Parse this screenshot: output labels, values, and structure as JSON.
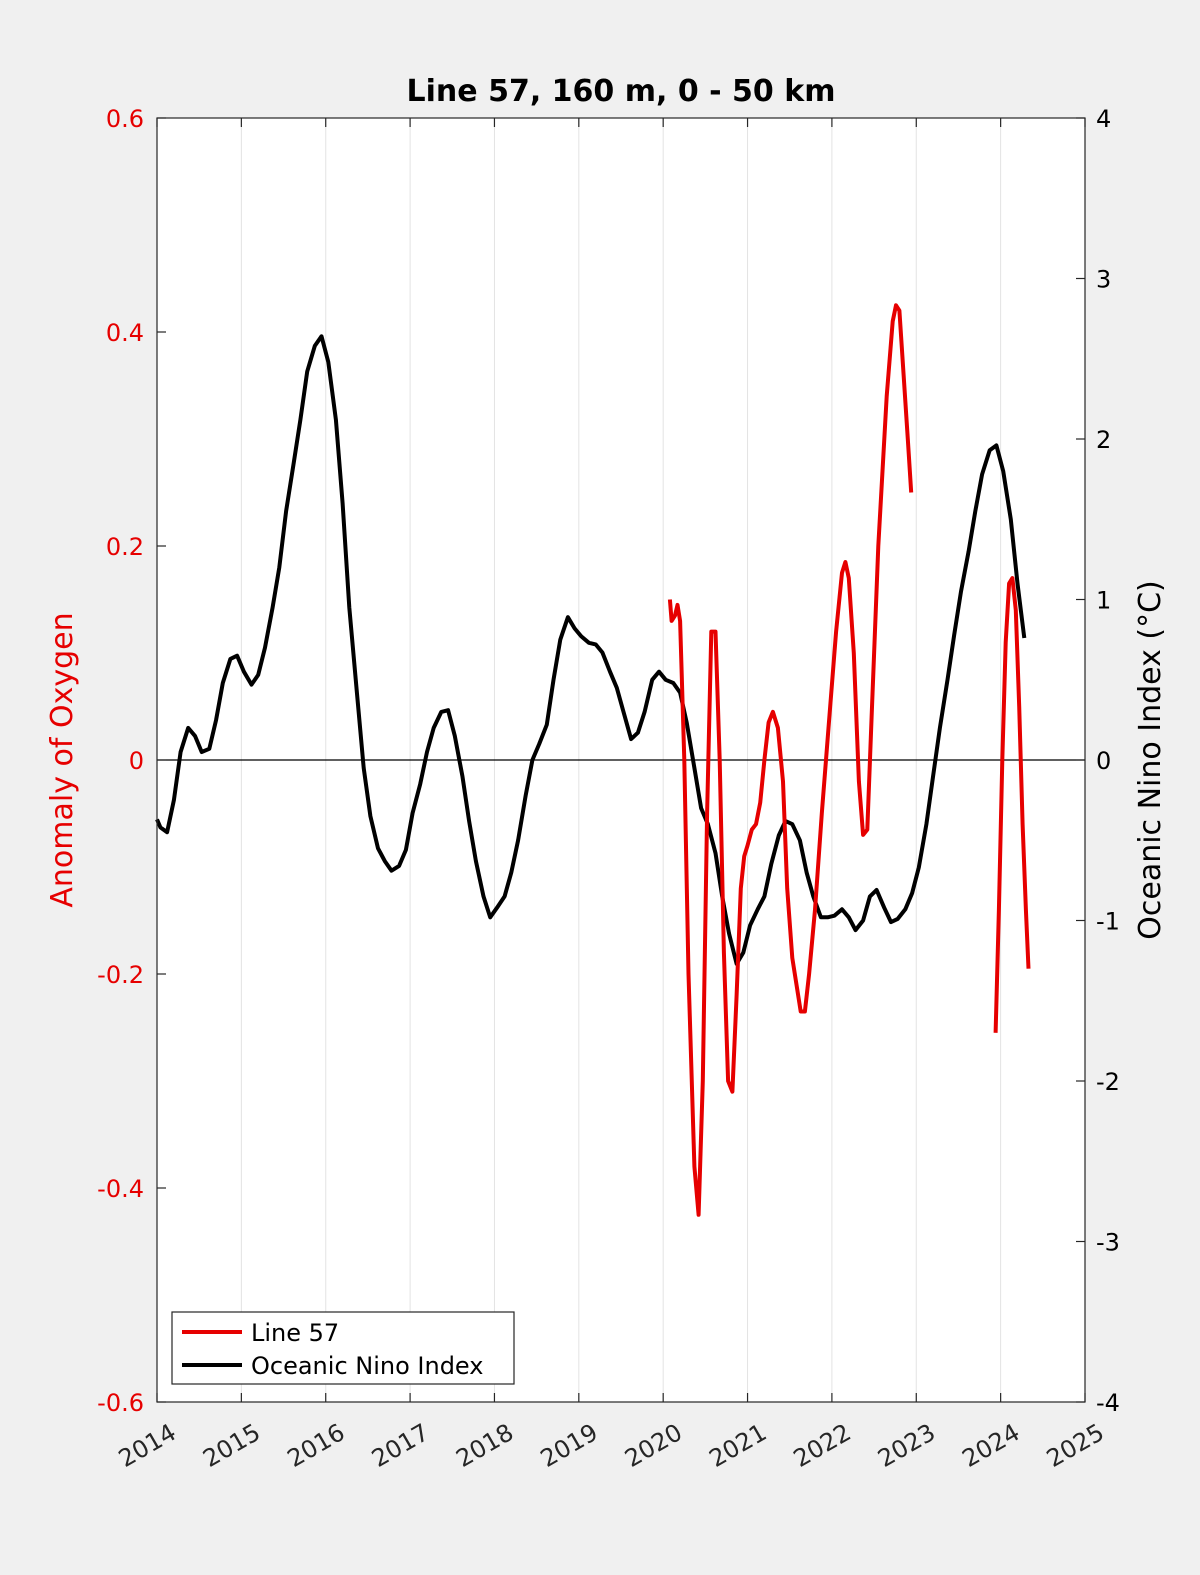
{
  "chart_data": {
    "type": "line",
    "title": "Line 57, 160 m, 0 - 50 km",
    "ylabel_left": "Anomaly of Oxygen",
    "ylabel_right": "Oceanic Nino Index (°C)",
    "xlim": [
      2014,
      2025
    ],
    "ylim_left": [
      -0.6,
      0.6
    ],
    "ylim_right": [
      -4,
      4
    ],
    "x_ticks": [
      "2014",
      "2015",
      "2016",
      "2017",
      "2018",
      "2019",
      "2020",
      "2021",
      "2022",
      "2023",
      "2024",
      "2025"
    ],
    "y_left_ticks": [
      "-0.6",
      "-0.4",
      "-0.2",
      "0",
      "0.2",
      "0.4",
      "0.6"
    ],
    "y_right_ticks": [
      "-4",
      "-3",
      "-2",
      "-1",
      "0",
      "1",
      "2",
      "3",
      "4"
    ],
    "grid": "vertical",
    "zero_line": true,
    "legend_position": "bottom-left",
    "series": [
      {
        "name": "Line 57",
        "axis": "left",
        "color": "#e60000",
        "segments": [
          [
            [
              2020.08,
              0.15
            ],
            [
              2020.1,
              0.13
            ],
            [
              2020.14,
              0.135
            ],
            [
              2020.17,
              0.145
            ],
            [
              2020.2,
              0.13
            ],
            [
              2020.25,
              0.0
            ],
            [
              2020.3,
              -0.2
            ],
            [
              2020.37,
              -0.38
            ],
            [
              2020.42,
              -0.425
            ],
            [
              2020.47,
              -0.3
            ],
            [
              2020.52,
              -0.05
            ],
            [
              2020.57,
              0.12
            ],
            [
              2020.62,
              0.12
            ],
            [
              2020.67,
              0.0
            ],
            [
              2020.72,
              -0.18
            ],
            [
              2020.77,
              -0.3
            ],
            [
              2020.82,
              -0.31
            ],
            [
              2020.87,
              -0.22
            ],
            [
              2020.92,
              -0.12
            ],
            [
              2020.96,
              -0.09
            ],
            [
              2021.0,
              -0.08
            ],
            [
              2021.05,
              -0.065
            ],
            [
              2021.1,
              -0.06
            ],
            [
              2021.15,
              -0.04
            ],
            [
              2021.2,
              0.0
            ],
            [
              2021.25,
              0.035
            ],
            [
              2021.3,
              0.045
            ],
            [
              2021.36,
              0.03
            ],
            [
              2021.42,
              -0.02
            ],
            [
              2021.47,
              -0.12
            ],
            [
              2021.53,
              -0.185
            ],
            [
              2021.58,
              -0.21
            ],
            [
              2021.63,
              -0.235
            ],
            [
              2021.68,
              -0.235
            ],
            [
              2021.73,
              -0.2
            ],
            [
              2021.8,
              -0.14
            ],
            [
              2021.88,
              -0.05
            ],
            [
              2021.96,
              0.03
            ],
            [
              2022.05,
              0.12
            ],
            [
              2022.12,
              0.175
            ],
            [
              2022.16,
              0.185
            ],
            [
              2022.2,
              0.17
            ],
            [
              2022.26,
              0.1
            ],
            [
              2022.32,
              -0.02
            ],
            [
              2022.37,
              -0.07
            ],
            [
              2022.42,
              -0.065
            ],
            [
              2022.47,
              0.04
            ],
            [
              2022.55,
              0.2
            ],
            [
              2022.65,
              0.34
            ],
            [
              2022.72,
              0.41
            ],
            [
              2022.76,
              0.425
            ],
            [
              2022.8,
              0.42
            ],
            [
              2022.85,
              0.36
            ],
            [
              2022.9,
              0.3
            ],
            [
              2022.94,
              0.25
            ]
          ],
          [
            [
              2023.94,
              -0.255
            ],
            [
              2023.98,
              -0.14
            ],
            [
              2024.02,
              0.0
            ],
            [
              2024.06,
              0.11
            ],
            [
              2024.1,
              0.165
            ],
            [
              2024.14,
              0.17
            ],
            [
              2024.18,
              0.14
            ],
            [
              2024.22,
              0.05
            ],
            [
              2024.26,
              -0.06
            ],
            [
              2024.3,
              -0.14
            ],
            [
              2024.33,
              -0.195
            ]
          ]
        ]
      },
      {
        "name": "Oceanic Nino Index",
        "axis": "right",
        "color": "#000000",
        "points": [
          [
            2014.0,
            -0.37
          ],
          [
            2014.04,
            -0.42
          ],
          [
            2014.12,
            -0.45
          ],
          [
            2014.2,
            -0.25
          ],
          [
            2014.28,
            0.05
          ],
          [
            2014.37,
            0.2
          ],
          [
            2014.45,
            0.15
          ],
          [
            2014.53,
            0.05
          ],
          [
            2014.62,
            0.07
          ],
          [
            2014.7,
            0.25
          ],
          [
            2014.78,
            0.48
          ],
          [
            2014.87,
            0.63
          ],
          [
            2014.95,
            0.65
          ],
          [
            2015.03,
            0.55
          ],
          [
            2015.12,
            0.47
          ],
          [
            2015.2,
            0.53
          ],
          [
            2015.28,
            0.7
          ],
          [
            2015.37,
            0.95
          ],
          [
            2015.45,
            1.2
          ],
          [
            2015.53,
            1.55
          ],
          [
            2015.62,
            1.85
          ],
          [
            2015.7,
            2.12
          ],
          [
            2015.78,
            2.42
          ],
          [
            2015.87,
            2.58
          ],
          [
            2015.95,
            2.64
          ],
          [
            2016.03,
            2.48
          ],
          [
            2016.12,
            2.12
          ],
          [
            2016.2,
            1.6
          ],
          [
            2016.28,
            0.95
          ],
          [
            2016.37,
            0.42
          ],
          [
            2016.45,
            -0.05
          ],
          [
            2016.53,
            -0.35
          ],
          [
            2016.62,
            -0.55
          ],
          [
            2016.7,
            -0.63
          ],
          [
            2016.78,
            -0.69
          ],
          [
            2016.87,
            -0.66
          ],
          [
            2016.95,
            -0.56
          ],
          [
            2017.03,
            -0.33
          ],
          [
            2017.12,
            -0.15
          ],
          [
            2017.2,
            0.05
          ],
          [
            2017.28,
            0.2
          ],
          [
            2017.37,
            0.3
          ],
          [
            2017.45,
            0.31
          ],
          [
            2017.53,
            0.15
          ],
          [
            2017.62,
            -0.1
          ],
          [
            2017.7,
            -0.38
          ],
          [
            2017.78,
            -0.63
          ],
          [
            2017.87,
            -0.85
          ],
          [
            2017.95,
            -0.98
          ],
          [
            2018.03,
            -0.92
          ],
          [
            2018.12,
            -0.85
          ],
          [
            2018.2,
            -0.7
          ],
          [
            2018.28,
            -0.5
          ],
          [
            2018.37,
            -0.22
          ],
          [
            2018.45,
            0.0
          ],
          [
            2018.53,
            0.1
          ],
          [
            2018.62,
            0.22
          ],
          [
            2018.7,
            0.5
          ],
          [
            2018.78,
            0.75
          ],
          [
            2018.87,
            0.89
          ],
          [
            2018.95,
            0.82
          ],
          [
            2019.03,
            0.77
          ],
          [
            2019.12,
            0.73
          ],
          [
            2019.2,
            0.72
          ],
          [
            2019.28,
            0.67
          ],
          [
            2019.37,
            0.55
          ],
          [
            2019.45,
            0.45
          ],
          [
            2019.53,
            0.3
          ],
          [
            2019.62,
            0.13
          ],
          [
            2019.7,
            0.17
          ],
          [
            2019.78,
            0.3
          ],
          [
            2019.87,
            0.5
          ],
          [
            2019.95,
            0.55
          ],
          [
            2020.03,
            0.5
          ],
          [
            2020.12,
            0.48
          ],
          [
            2020.2,
            0.42
          ],
          [
            2020.28,
            0.23
          ],
          [
            2020.37,
            -0.05
          ],
          [
            2020.45,
            -0.3
          ],
          [
            2020.53,
            -0.4
          ],
          [
            2020.62,
            -0.58
          ],
          [
            2020.7,
            -0.85
          ],
          [
            2020.78,
            -1.08
          ],
          [
            2020.87,
            -1.27
          ],
          [
            2020.95,
            -1.2
          ],
          [
            2021.03,
            -1.03
          ],
          [
            2021.12,
            -0.93
          ],
          [
            2021.2,
            -0.85
          ],
          [
            2021.28,
            -0.65
          ],
          [
            2021.37,
            -0.47
          ],
          [
            2021.45,
            -0.38
          ],
          [
            2021.53,
            -0.4
          ],
          [
            2021.62,
            -0.5
          ],
          [
            2021.7,
            -0.7
          ],
          [
            2021.78,
            -0.85
          ],
          [
            2021.87,
            -0.98
          ],
          [
            2021.95,
            -0.98
          ],
          [
            2022.03,
            -0.97
          ],
          [
            2022.12,
            -0.93
          ],
          [
            2022.2,
            -0.98
          ],
          [
            2022.28,
            -1.06
          ],
          [
            2022.37,
            -1.0
          ],
          [
            2022.45,
            -0.85
          ],
          [
            2022.53,
            -0.81
          ],
          [
            2022.62,
            -0.92
          ],
          [
            2022.7,
            -1.01
          ],
          [
            2022.78,
            -0.99
          ],
          [
            2022.87,
            -0.93
          ],
          [
            2022.95,
            -0.83
          ],
          [
            2023.03,
            -0.67
          ],
          [
            2023.12,
            -0.4
          ],
          [
            2023.2,
            -0.1
          ],
          [
            2023.28,
            0.2
          ],
          [
            2023.37,
            0.5
          ],
          [
            2023.45,
            0.78
          ],
          [
            2023.53,
            1.05
          ],
          [
            2023.62,
            1.3
          ],
          [
            2023.7,
            1.55
          ],
          [
            2023.78,
            1.78
          ],
          [
            2023.87,
            1.93
          ],
          [
            2023.95,
            1.96
          ],
          [
            2024.03,
            1.8
          ],
          [
            2024.12,
            1.5
          ],
          [
            2024.2,
            1.1
          ],
          [
            2024.28,
            0.76
          ]
        ]
      }
    ]
  }
}
